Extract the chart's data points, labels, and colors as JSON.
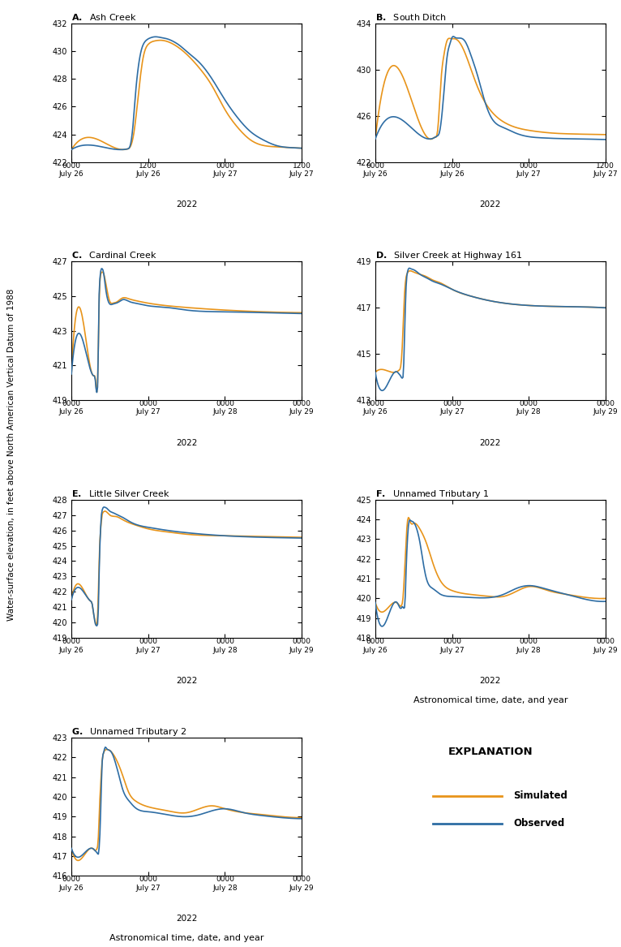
{
  "panels": [
    {
      "label": "A",
      "title": "Ash Creek",
      "ylim": [
        422,
        432
      ],
      "yticks": [
        422,
        424,
        426,
        428,
        430,
        432
      ],
      "xlim": [
        0,
        36
      ],
      "xtick_positions": [
        0,
        12,
        24,
        36
      ],
      "xtick_times": [
        "0000",
        "1200",
        "0000",
        "1200"
      ],
      "xtick_dates": [
        "July 26",
        "July 26",
        "July 27",
        "July 27"
      ],
      "year_label": "2022",
      "sim": {
        "x": [
          0,
          8.0,
          8.8,
          9.2,
          9.8,
          10.5,
          11.2,
          12.0,
          13.0,
          14.0,
          16,
          18,
          20,
          22,
          24,
          26,
          28,
          30,
          32,
          34,
          36
        ],
        "y": [
          422.9,
          422.9,
          422.95,
          423.1,
          424.2,
          427.0,
          429.5,
          430.5,
          430.75,
          430.8,
          430.5,
          429.8,
          428.8,
          427.5,
          425.8,
          424.5,
          423.6,
          423.2,
          423.1,
          423.05,
          423.0
        ]
      },
      "obs": {
        "x": [
          0,
          8.0,
          8.8,
          9.2,
          9.6,
          10.0,
          10.5,
          11.0,
          11.5,
          12.0,
          12.5,
          13.0,
          14.0,
          15.0,
          16,
          17,
          18,
          20,
          22,
          24,
          26,
          28,
          30,
          32,
          34,
          36
        ],
        "y": [
          422.9,
          422.9,
          422.95,
          423.2,
          424.5,
          426.8,
          429.0,
          430.2,
          430.7,
          430.9,
          431.0,
          431.05,
          431.0,
          430.9,
          430.7,
          430.4,
          430.0,
          429.2,
          428.0,
          426.5,
          425.2,
          424.2,
          423.6,
          423.2,
          423.05,
          423.0
        ]
      }
    },
    {
      "label": "B",
      "title": "South Ditch",
      "ylim": [
        422,
        434
      ],
      "yticks": [
        422,
        426,
        430,
        434
      ],
      "xlim": [
        0,
        36
      ],
      "xtick_positions": [
        0,
        12,
        24,
        36
      ],
      "xtick_times": [
        "0000",
        "1200",
        "0000",
        "1200"
      ],
      "xtick_dates": [
        "July 26",
        "July 26",
        "July 27",
        "July 27"
      ],
      "year_label": "2022",
      "sim": {
        "x": [
          0,
          8.5,
          9.0,
          9.3,
          9.8,
          10.2,
          10.8,
          11.2,
          11.8,
          12.3,
          13.0,
          14.0,
          15.0,
          16.0,
          18.0,
          20.0,
          22.0,
          24.0,
          26,
          28,
          30,
          32,
          34,
          36
        ],
        "y": [
          424.0,
          424.0,
          424.05,
          424.15,
          425.0,
          428.5,
          431.5,
          432.5,
          432.7,
          432.7,
          432.5,
          431.5,
          430.0,
          428.5,
          426.5,
          425.5,
          425.0,
          424.75,
          424.6,
          424.5,
          424.45,
          424.42,
          424.4,
          424.38
        ]
      },
      "obs": {
        "x": [
          0,
          8.5,
          9.0,
          9.2,
          9.5,
          9.8,
          10.0,
          10.3,
          10.8,
          11.2,
          11.7,
          12.0,
          12.5,
          13.0,
          14.0,
          15.0,
          16.0,
          17.0,
          18.0,
          20.0,
          22.0,
          24.0,
          26,
          28,
          30,
          32,
          34,
          36
        ],
        "y": [
          424.0,
          424.0,
          424.05,
          424.1,
          424.2,
          424.3,
          424.5,
          425.5,
          428.5,
          431.0,
          432.3,
          432.8,
          432.8,
          432.75,
          432.5,
          431.2,
          429.5,
          427.5,
          426.0,
          425.0,
          424.5,
          424.2,
          424.1,
          424.05,
          424.02,
          424.0,
          423.98,
          423.95
        ]
      }
    },
    {
      "label": "C",
      "title": "Cardinal Creek",
      "ylim": [
        419,
        427
      ],
      "yticks": [
        419,
        421,
        423,
        425,
        427
      ],
      "xlim": [
        0,
        72
      ],
      "xtick_positions": [
        0,
        24,
        48,
        72
      ],
      "xtick_times": [
        "0000",
        "0000",
        "0000",
        "0000"
      ],
      "xtick_dates": [
        "July 26",
        "July 27",
        "July 28",
        "July 29"
      ],
      "year_label": "2022",
      "sim": {
        "x": [
          0,
          6.5,
          7.0,
          7.5,
          7.8,
          8.0,
          8.3,
          8.6,
          8.9,
          9.2,
          9.6,
          10.0,
          10.5,
          11.0,
          12.0,
          13.0,
          14.0,
          16.0,
          18.0,
          20.0,
          24.0,
          30.0,
          36.0,
          48.0,
          60.0,
          72.0
        ],
        "y": [
          420.5,
          420.5,
          420.4,
          420.2,
          419.6,
          419.5,
          420.8,
          424.0,
          425.8,
          426.3,
          426.4,
          426.35,
          426.0,
          425.5,
          424.7,
          424.6,
          424.65,
          424.9,
          424.85,
          424.75,
          424.6,
          424.45,
          424.35,
          424.2,
          424.1,
          424.05
        ]
      },
      "obs": {
        "x": [
          0,
          6.5,
          7.0,
          7.5,
          7.8,
          8.0,
          8.3,
          8.6,
          8.9,
          9.2,
          9.5,
          9.8,
          10.2,
          10.6,
          11.0,
          12.0,
          13.0,
          14.0,
          15.5,
          16.0,
          18.0,
          20.0,
          24.0,
          30.0,
          36.0,
          48.0,
          60.0,
          72.0
        ],
        "y": [
          420.5,
          420.5,
          420.4,
          420.1,
          419.5,
          419.45,
          420.5,
          424.5,
          426.0,
          426.5,
          426.6,
          426.55,
          426.2,
          425.6,
          425.1,
          424.55,
          424.55,
          424.6,
          424.75,
          424.8,
          424.7,
          424.6,
          424.45,
          424.35,
          424.2,
          424.1,
          424.05,
          424.0
        ]
      }
    },
    {
      "label": "D",
      "title": "Silver Creek at Highway 161",
      "ylim": [
        413,
        419
      ],
      "yticks": [
        413,
        415,
        417,
        419
      ],
      "xlim": [
        0,
        72
      ],
      "xtick_positions": [
        0,
        24,
        48,
        72
      ],
      "xtick_times": [
        "0000",
        "0000",
        "0000",
        "0000"
      ],
      "xtick_dates": [
        "July 26",
        "July 27",
        "July 28",
        "July 29"
      ],
      "year_label": "2022",
      "sim": {
        "x": [
          0,
          6,
          7,
          7.5,
          8.0,
          8.5,
          9.0,
          9.5,
          10.0,
          11.0,
          12.0,
          14.0,
          16.0,
          18.0,
          20.0,
          24.0,
          30.0,
          36.0,
          48.0,
          60.0,
          72.0
        ],
        "y": [
          414.2,
          414.2,
          414.25,
          414.3,
          414.5,
          415.5,
          417.2,
          418.2,
          418.5,
          418.6,
          418.55,
          418.45,
          418.35,
          418.2,
          418.1,
          417.8,
          417.5,
          417.3,
          417.1,
          417.05,
          417.0
        ]
      },
      "obs": {
        "x": [
          0,
          6,
          7,
          7.3,
          7.6,
          7.9,
          8.1,
          8.3,
          8.5,
          8.8,
          9.0,
          9.3,
          9.6,
          10.0,
          11.0,
          12.0,
          14.0,
          16.0,
          18.0,
          20.0,
          24.0,
          30.0,
          36.0,
          48.0,
          60.0,
          72.0
        ],
        "y": [
          414.2,
          414.2,
          414.2,
          414.15,
          414.1,
          414.05,
          414.0,
          413.95,
          413.95,
          414.2,
          415.0,
          416.5,
          417.8,
          418.5,
          418.7,
          418.65,
          418.45,
          418.3,
          418.15,
          418.05,
          417.8,
          417.5,
          417.3,
          417.1,
          417.05,
          417.0
        ]
      }
    },
    {
      "label": "E",
      "title": "Little Silver Creek",
      "ylim": [
        419,
        428
      ],
      "yticks": [
        419,
        420,
        421,
        422,
        423,
        424,
        425,
        426,
        427,
        428
      ],
      "xlim": [
        0,
        72
      ],
      "xtick_positions": [
        0,
        24,
        48,
        72
      ],
      "xtick_times": [
        "0000",
        "0000",
        "0000",
        "0000"
      ],
      "xtick_dates": [
        "July 26",
        "July 27",
        "July 28",
        "July 29"
      ],
      "year_label": "2022",
      "sim": {
        "x": [
          0,
          5.5,
          6.0,
          6.5,
          7.0,
          7.3,
          7.6,
          7.9,
          8.2,
          8.5,
          8.8,
          9.2,
          9.6,
          10.0,
          10.5,
          11.0,
          11.5,
          12.0,
          14.0,
          16.0,
          18.0,
          20.0,
          24.0,
          30.0,
          36.0,
          48.0,
          60.0,
          72.0
        ],
        "y": [
          421.5,
          421.5,
          421.4,
          421.2,
          420.5,
          420.2,
          419.9,
          419.85,
          420.5,
          422.5,
          424.8,
          426.2,
          427.0,
          427.2,
          427.25,
          427.2,
          427.1,
          427.0,
          426.9,
          426.7,
          426.5,
          426.35,
          426.1,
          425.9,
          425.75,
          425.65,
          425.6,
          425.55
        ]
      },
      "obs": {
        "x": [
          0,
          5.5,
          6.0,
          6.5,
          7.0,
          7.3,
          7.6,
          7.9,
          8.1,
          8.3,
          8.5,
          8.7,
          9.0,
          9.3,
          9.6,
          10.0,
          10.5,
          11.0,
          11.5,
          12.0,
          13.0,
          14.0,
          16.0,
          18.0,
          20.0,
          24.0,
          30.0,
          36.0,
          48.0,
          60.0,
          72.0
        ],
        "y": [
          421.5,
          421.5,
          421.4,
          421.2,
          420.5,
          420.1,
          419.85,
          419.8,
          419.8,
          420.2,
          421.5,
          423.5,
          425.5,
          426.8,
          427.3,
          427.5,
          427.5,
          427.45,
          427.35,
          427.25,
          427.15,
          427.05,
          426.85,
          426.6,
          426.4,
          426.2,
          426.0,
          425.85,
          425.65,
          425.55,
          425.5
        ]
      }
    },
    {
      "label": "F",
      "title": "Unnamed Tributary 1",
      "ylim": [
        418,
        425
      ],
      "yticks": [
        418,
        419,
        420,
        421,
        422,
        423,
        424,
        425
      ],
      "xlim": [
        0,
        72
      ],
      "xtick_positions": [
        0,
        24,
        48,
        72
      ],
      "xtick_times": [
        "0000",
        "0000",
        "0000",
        "0000"
      ],
      "xtick_dates": [
        "July 26",
        "July 27",
        "July 28",
        "July 29"
      ],
      "year_label": "2022",
      "sim": {
        "x": [
          0,
          6,
          7,
          7.3,
          7.6,
          7.9,
          8.2,
          8.5,
          8.8,
          9.2,
          9.6,
          10.0,
          11.0,
          12.0,
          14.0,
          16.0,
          18.0,
          20.0,
          24.0,
          30.0,
          36.0,
          40.0,
          44.0,
          48.0,
          54.0,
          60.0,
          66.0,
          72.0
        ],
        "y": [
          419.8,
          419.8,
          419.75,
          419.7,
          419.65,
          419.6,
          419.65,
          419.8,
          420.3,
          421.5,
          422.8,
          423.8,
          423.85,
          423.8,
          423.5,
          422.8,
          421.8,
          421.0,
          420.4,
          420.2,
          420.1,
          420.1,
          420.35,
          420.6,
          420.4,
          420.2,
          420.05,
          420.0
        ]
      },
      "obs": {
        "x": [
          0,
          6,
          7,
          7.3,
          7.6,
          7.9,
          8.1,
          8.3,
          8.5,
          8.7,
          9.0,
          9.3,
          9.6,
          10.0,
          10.5,
          11.0,
          12.0,
          13.0,
          14.0,
          15.0,
          16.0,
          18.0,
          20.0,
          24.0,
          30.0,
          36.0,
          40.0,
          44.0,
          48.0,
          54.0,
          60.0,
          66.0,
          72.0
        ],
        "y": [
          419.8,
          419.8,
          419.75,
          419.65,
          419.55,
          419.5,
          419.5,
          419.55,
          419.6,
          419.55,
          419.5,
          419.8,
          421.2,
          422.8,
          423.85,
          423.95,
          423.85,
          423.5,
          422.8,
          421.8,
          421.0,
          420.5,
          420.25,
          420.1,
          420.05,
          420.05,
          420.2,
          420.5,
          420.65,
          420.45,
          420.2,
          419.95,
          419.85
        ]
      }
    },
    {
      "label": "G",
      "title": "Unnamed Tributary 2",
      "ylim": [
        416,
        423
      ],
      "yticks": [
        416,
        417,
        418,
        419,
        420,
        421,
        422,
        423
      ],
      "xlim": [
        0,
        72
      ],
      "xtick_positions": [
        0,
        24,
        48,
        72
      ],
      "xtick_times": [
        "0000",
        "0000",
        "0000",
        "0000"
      ],
      "xtick_dates": [
        "July 26",
        "July 27",
        "July 28",
        "July 29"
      ],
      "year_label": "2022",
      "sim": {
        "x": [
          0,
          6,
          7,
          7.3,
          7.6,
          7.9,
          8.2,
          8.5,
          8.8,
          9.2,
          9.6,
          10.0,
          11.0,
          12.0,
          14.0,
          16.0,
          18.0,
          20.0,
          24.0,
          30.0,
          36.0,
          40.0,
          44.0,
          48.0,
          54.0,
          60.0,
          66.0,
          72.0
        ],
        "y": [
          417.4,
          417.4,
          417.35,
          417.3,
          417.3,
          417.35,
          417.5,
          418.2,
          419.5,
          420.8,
          421.8,
          422.2,
          422.4,
          422.35,
          421.9,
          421.1,
          420.2,
          419.8,
          419.5,
          419.3,
          419.2,
          419.4,
          419.55,
          419.4,
          419.2,
          419.1,
          419.0,
          418.95
        ]
      },
      "obs": {
        "x": [
          0,
          6,
          7,
          7.3,
          7.6,
          7.9,
          8.1,
          8.3,
          8.5,
          8.7,
          9.0,
          9.3,
          9.6,
          10.0,
          10.5,
          11.0,
          12.0,
          13.0,
          14.0,
          15.0,
          16.0,
          18.0,
          20.0,
          24.0,
          30.0,
          36.0,
          40.0,
          44.0,
          48.0,
          54.0,
          60.0,
          66.0,
          72.0
        ],
        "y": [
          417.4,
          417.4,
          417.35,
          417.3,
          417.25,
          417.2,
          417.15,
          417.1,
          417.15,
          417.5,
          418.5,
          420.2,
          421.7,
          422.2,
          422.5,
          422.45,
          422.35,
          422.1,
          421.6,
          421.0,
          420.4,
          419.8,
          419.45,
          419.25,
          419.1,
          419.0,
          419.1,
          419.3,
          419.4,
          419.2,
          419.05,
          418.95,
          418.9
        ]
      }
    }
  ],
  "colors": {
    "simulated": "#E8941A",
    "observed": "#2E6DA4"
  },
  "ylabel": "Water-surface elevation, in feet above North American Vertical Datum of 1988",
  "xlabel": "Astronomical time, date, and year",
  "legend": {
    "title": "EXPLANATION",
    "simulated_label": "Simulated",
    "observed_label": "Observed"
  }
}
